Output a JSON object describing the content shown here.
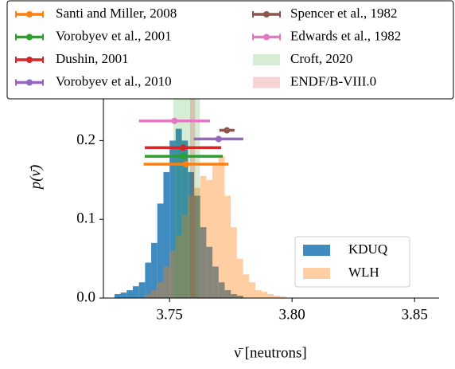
{
  "chart_data": {
    "type": "histogram",
    "xlabel": "ν̄ [neutrons]",
    "ylabel": "p(ν̄)",
    "xlim": [
      3.723,
      3.86
    ],
    "ylim": [
      0,
      0.25
    ],
    "xticks": [
      3.75,
      {
        "value": 3.8,
        "label": "3.80"
      },
      3.85
    ],
    "yticks": [
      {
        "value": 0,
        "label": "0.0"
      },
      0.1,
      0.2
    ],
    "bins": [
      3.7275,
      3.73,
      3.7325,
      3.735,
      3.7375,
      3.74,
      3.7425,
      3.745,
      3.7475,
      3.75,
      3.7525,
      3.755,
      3.7575,
      3.76,
      3.7625,
      3.765,
      3.7675,
      3.77,
      3.7725,
      3.775,
      3.7775,
      3.78,
      3.7825,
      3.785,
      3.7875,
      3.79,
      3.7925,
      3.795,
      3.7975,
      3.8,
      3.8025
    ],
    "series": [
      {
        "name": "KDUQ",
        "color": "#1f77b4",
        "alpha": 0.85,
        "values": [
          0.005,
          0.007,
          0.01,
          0.015,
          0.02,
          0.045,
          0.07,
          0.12,
          0.16,
          0.2,
          0.215,
          0.2,
          0.16,
          0.13,
          0.09,
          0.065,
          0.04,
          0.02,
          0.01,
          0.005,
          0.003,
          0,
          0,
          0,
          0,
          0,
          0,
          0,
          0,
          0
        ]
      },
      {
        "name": "WLH",
        "color": "#ff7f0e",
        "alpha": 0.38,
        "values": [
          0,
          0,
          0,
          0,
          0,
          0.005,
          0.01,
          0.02,
          0.04,
          0.06,
          0.08,
          0.105,
          0.13,
          0.14,
          0.155,
          0.15,
          0.17,
          0.18,
          0.13,
          0.09,
          0.05,
          0.03,
          0.02,
          0.01,
          0.008,
          0.005,
          0.003,
          0.002,
          0,
          0
        ]
      }
    ],
    "errorbars": [
      {
        "name": "Santi and Miller, 2008",
        "color": "#ff7f0e",
        "x": 3.7567,
        "y": 0.17,
        "xerr": 0.0173
      },
      {
        "name": "Vorobyev et al., 2001",
        "color": "#2ca02c",
        "x": 3.7558,
        "y": 0.18,
        "xerr": 0.0159
      },
      {
        "name": "Dushin, 2001",
        "color": "#d62728",
        "x": 3.7555,
        "y": 0.191,
        "xerr": 0.0156
      },
      {
        "name": "Vorobyev et al., 2010",
        "color": "#9467bd",
        "x": 3.77,
        "y": 0.202,
        "xerr": 0.0101
      },
      {
        "name": "Spencer et al., 1982",
        "color": "#8c564b",
        "x": 3.7734,
        "y": 0.213,
        "xerr": 0.0031
      },
      {
        "name": "Edwards et al., 1982",
        "color": "#e377c2",
        "x": 3.752,
        "y": 0.225,
        "xerr": 0.0145
      }
    ],
    "bands": [
      {
        "name": "Croft, 2020",
        "color": "#2ca02c",
        "x": 3.757,
        "xerr": 0.0054
      },
      {
        "name": "ENDF/B-VIII.0",
        "color": "#d62728",
        "x": 3.7594,
        "xerr": 0.001
      }
    ]
  }
}
